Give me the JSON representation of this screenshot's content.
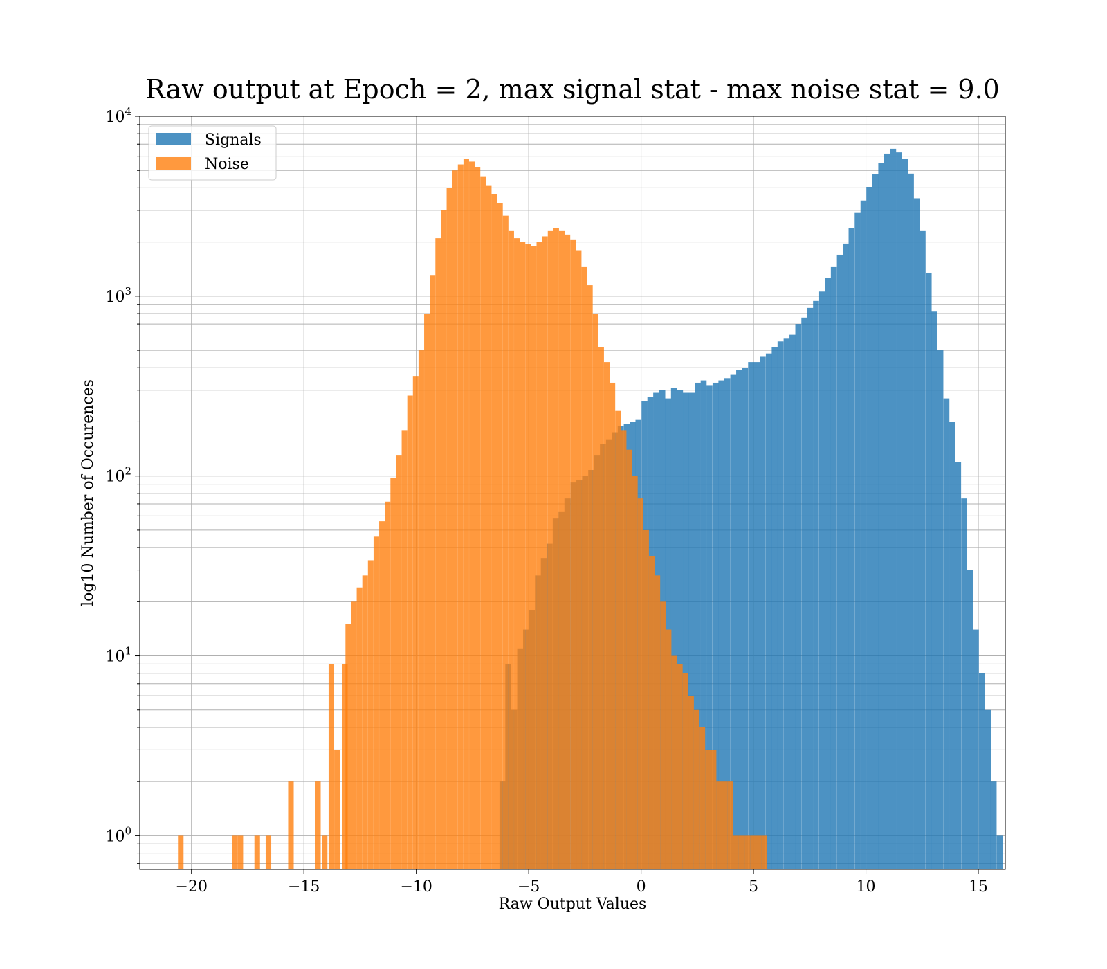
{
  "chart_data": {
    "type": "histogram",
    "title": "Raw output at Epoch = 2, max signal stat - max noise stat = 9.0",
    "xlabel": "Raw Output Values",
    "ylabel": "log10 Number of Occurences",
    "yscale": "log",
    "xlim": [
      -22.3,
      16.2
    ],
    "ylim": [
      0.65,
      10000
    ],
    "xticks": [
      -20,
      -15,
      -10,
      -5,
      0,
      5,
      10,
      15
    ],
    "xtick_labels": [
      "−20",
      "−15",
      "−10",
      "−5",
      "0",
      "5",
      "10",
      "15"
    ],
    "yticks": [
      1,
      10,
      100,
      1000,
      10000
    ],
    "ytick_labels": [
      {
        "base": "10",
        "exp": "0"
      },
      {
        "base": "10",
        "exp": "1"
      },
      {
        "base": "10",
        "exp": "2"
      },
      {
        "base": "10",
        "exp": "3"
      },
      {
        "base": "10",
        "exp": "4"
      }
    ],
    "grid": true,
    "legend_position": "top-left",
    "series": [
      {
        "name": "Signals",
        "color": "#1f77b4",
        "opacity": 0.8,
        "bin_width": 0.264,
        "bins": [
          [
            -6.3,
            2
          ],
          [
            -6.04,
            9
          ],
          [
            -5.78,
            5
          ],
          [
            -5.51,
            11
          ],
          [
            -5.25,
            14
          ],
          [
            -4.99,
            18
          ],
          [
            -4.72,
            28
          ],
          [
            -4.46,
            35
          ],
          [
            -4.2,
            42
          ],
          [
            -3.93,
            58
          ],
          [
            -3.67,
            63
          ],
          [
            -3.41,
            75
          ],
          [
            -3.14,
            92
          ],
          [
            -2.88,
            95
          ],
          [
            -2.62,
            100
          ],
          [
            -2.35,
            108
          ],
          [
            -2.09,
            130
          ],
          [
            -1.83,
            150
          ],
          [
            -1.56,
            160
          ],
          [
            -1.3,
            175
          ],
          [
            -1.04,
            190
          ],
          [
            -0.77,
            195
          ],
          [
            -0.51,
            200
          ],
          [
            -0.25,
            205
          ],
          [
            0.02,
            260
          ],
          [
            0.28,
            275
          ],
          [
            0.54,
            290
          ],
          [
            0.81,
            300
          ],
          [
            1.07,
            270
          ],
          [
            1.33,
            310
          ],
          [
            1.6,
            300
          ],
          [
            1.86,
            290
          ],
          [
            2.12,
            290
          ],
          [
            2.39,
            330
          ],
          [
            2.65,
            340
          ],
          [
            2.91,
            320
          ],
          [
            3.18,
            330
          ],
          [
            3.44,
            340
          ],
          [
            3.7,
            350
          ],
          [
            3.97,
            365
          ],
          [
            4.23,
            390
          ],
          [
            4.49,
            400
          ],
          [
            4.76,
            430
          ],
          [
            5.02,
            430
          ],
          [
            5.28,
            460
          ],
          [
            5.55,
            480
          ],
          [
            5.81,
            520
          ],
          [
            6.07,
            560
          ],
          [
            6.34,
            580
          ],
          [
            6.6,
            610
          ],
          [
            6.86,
            700
          ],
          [
            7.13,
            760
          ],
          [
            7.39,
            860
          ],
          [
            7.65,
            940
          ],
          [
            7.92,
            1060
          ],
          [
            8.18,
            1260
          ],
          [
            8.44,
            1450
          ],
          [
            8.71,
            1700
          ],
          [
            8.97,
            1960
          ],
          [
            9.23,
            2400
          ],
          [
            9.5,
            2900
          ],
          [
            9.76,
            3400
          ],
          [
            10.02,
            4050
          ],
          [
            10.29,
            4750
          ],
          [
            10.55,
            5500
          ],
          [
            10.81,
            6200
          ],
          [
            11.08,
            6600
          ],
          [
            11.34,
            6300
          ],
          [
            11.6,
            5800
          ],
          [
            11.87,
            4800
          ],
          [
            12.13,
            3500
          ],
          [
            12.39,
            2300
          ],
          [
            12.66,
            1350
          ],
          [
            12.92,
            820
          ],
          [
            13.18,
            500
          ],
          [
            13.45,
            270
          ],
          [
            13.71,
            200
          ],
          [
            13.97,
            120
          ],
          [
            14.24,
            75
          ],
          [
            14.5,
            30
          ],
          [
            14.76,
            14
          ],
          [
            15.03,
            8
          ],
          [
            15.29,
            5
          ],
          [
            15.55,
            2
          ],
          [
            15.82,
            1
          ]
        ]
      },
      {
        "name": "Noise",
        "color": "#ff7f0e",
        "opacity": 0.8,
        "bin_width": 0.248,
        "bins": [
          [
            -20.6,
            1
          ],
          [
            -18.2,
            1
          ],
          [
            -17.95,
            1
          ],
          [
            -17.2,
            1
          ],
          [
            -16.7,
            1
          ],
          [
            -15.7,
            2
          ],
          [
            -14.5,
            2
          ],
          [
            -14.2,
            1
          ],
          [
            -13.9,
            9
          ],
          [
            -13.65,
            3
          ],
          [
            -13.3,
            9
          ],
          [
            -13.15,
            15
          ],
          [
            -12.9,
            20
          ],
          [
            -12.65,
            24
          ],
          [
            -12.4,
            28
          ],
          [
            -12.15,
            34
          ],
          [
            -11.9,
            46
          ],
          [
            -11.65,
            56
          ],
          [
            -11.4,
            72
          ],
          [
            -11.15,
            98
          ],
          [
            -10.9,
            130
          ],
          [
            -10.65,
            180
          ],
          [
            -10.4,
            280
          ],
          [
            -10.15,
            360
          ],
          [
            -9.9,
            500
          ],
          [
            -9.65,
            800
          ],
          [
            -9.4,
            1300
          ],
          [
            -9.15,
            2100
          ],
          [
            -8.9,
            3000
          ],
          [
            -8.65,
            4000
          ],
          [
            -8.4,
            5000
          ],
          [
            -8.15,
            5400
          ],
          [
            -7.9,
            5800
          ],
          [
            -7.65,
            5600
          ],
          [
            -7.4,
            5200
          ],
          [
            -7.15,
            4600
          ],
          [
            -6.9,
            4100
          ],
          [
            -6.65,
            3700
          ],
          [
            -6.4,
            3300
          ],
          [
            -6.15,
            2800
          ],
          [
            -5.9,
            2300
          ],
          [
            -5.65,
            2100
          ],
          [
            -5.4,
            2000
          ],
          [
            -5.15,
            1950
          ],
          [
            -4.9,
            1900
          ],
          [
            -4.65,
            2000
          ],
          [
            -4.4,
            2150
          ],
          [
            -4.15,
            2300
          ],
          [
            -3.9,
            2400
          ],
          [
            -3.65,
            2300
          ],
          [
            -3.4,
            2200
          ],
          [
            -3.15,
            2050
          ],
          [
            -2.9,
            1800
          ],
          [
            -2.65,
            1450
          ],
          [
            -2.4,
            1150
          ],
          [
            -2.15,
            800
          ],
          [
            -1.9,
            520
          ],
          [
            -1.65,
            430
          ],
          [
            -1.4,
            330
          ],
          [
            -1.15,
            230
          ],
          [
            -0.9,
            180
          ],
          [
            -0.65,
            140
          ],
          [
            -0.4,
            100
          ],
          [
            -0.15,
            75
          ],
          [
            0.1,
            50
          ],
          [
            0.35,
            36
          ],
          [
            0.6,
            28
          ],
          [
            0.85,
            20
          ],
          [
            1.1,
            14
          ],
          [
            1.35,
            10
          ],
          [
            1.6,
            9
          ],
          [
            1.85,
            8
          ],
          [
            2.1,
            6
          ],
          [
            2.35,
            5
          ],
          [
            2.6,
            4
          ],
          [
            2.85,
            3
          ],
          [
            3.1,
            3
          ],
          [
            3.35,
            2
          ],
          [
            3.6,
            2
          ],
          [
            3.85,
            2
          ],
          [
            4.1,
            1
          ],
          [
            4.35,
            1
          ],
          [
            4.6,
            1
          ],
          [
            4.85,
            1
          ],
          [
            5.1,
            1
          ],
          [
            5.35,
            1
          ]
        ]
      }
    ]
  }
}
